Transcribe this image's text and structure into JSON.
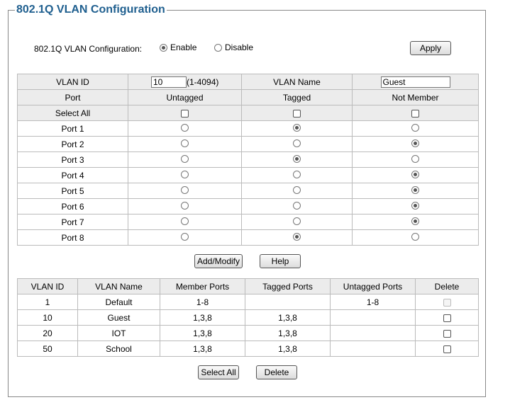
{
  "title": "802.1Q VLAN Configuration",
  "config": {
    "label": "802.1Q VLAN Configuration:",
    "enable_label": "Enable",
    "disable_label": "Disable",
    "enabled": true,
    "apply_label": "Apply"
  },
  "editor": {
    "vlan_id_label": "VLAN ID",
    "vlan_id_value": "10",
    "vlan_id_range": "(1-4094)",
    "vlan_name_label": "VLAN Name",
    "vlan_name_value": "Guest",
    "headers": [
      "Port",
      "Untagged",
      "Tagged",
      "Not Member"
    ],
    "select_all_label": "Select All",
    "ports": [
      {
        "label": "Port 1",
        "state": "tagged"
      },
      {
        "label": "Port 2",
        "state": "not_member"
      },
      {
        "label": "Port 3",
        "state": "tagged"
      },
      {
        "label": "Port 4",
        "state": "not_member"
      },
      {
        "label": "Port 5",
        "state": "not_member"
      },
      {
        "label": "Port 6",
        "state": "not_member"
      },
      {
        "label": "Port 7",
        "state": "not_member"
      },
      {
        "label": "Port 8",
        "state": "tagged"
      }
    ]
  },
  "actions": {
    "add_modify_label": "Add/Modify",
    "help_label": "Help",
    "select_all_label": "Select All",
    "delete_label": "Delete"
  },
  "vlan_table": {
    "headers": [
      "VLAN ID",
      "VLAN Name",
      "Member Ports",
      "Tagged Ports",
      "Untagged Ports",
      "Delete"
    ],
    "rows": [
      {
        "id": "1",
        "name": "Default",
        "member": "1-8",
        "tagged": "",
        "untagged": "1-8",
        "deletable": false
      },
      {
        "id": "10",
        "name": "Guest",
        "member": "1,3,8",
        "tagged": "1,3,8",
        "untagged": "",
        "deletable": true
      },
      {
        "id": "20",
        "name": "IOT",
        "member": "1,3,8",
        "tagged": "1,3,8",
        "untagged": "",
        "deletable": true
      },
      {
        "id": "50",
        "name": "School",
        "member": "1,3,8",
        "tagged": "1,3,8",
        "untagged": "",
        "deletable": true
      }
    ]
  }
}
